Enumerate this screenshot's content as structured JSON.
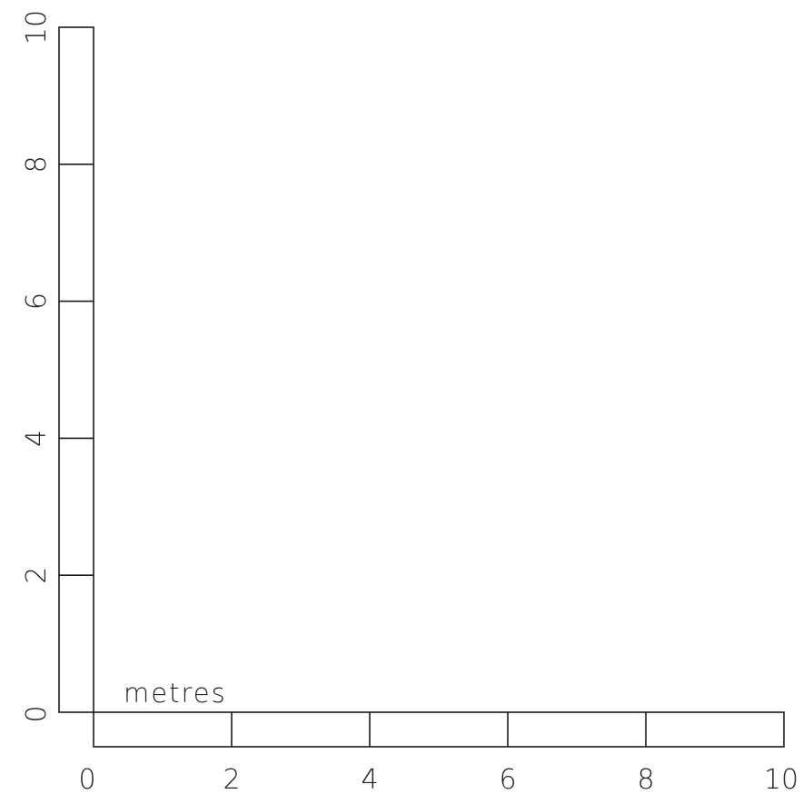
{
  "scale": {
    "unit_label": "metres",
    "axis_min": 0,
    "axis_max": 10,
    "tick_step": 2,
    "x_tick_labels": [
      "0",
      "2",
      "4",
      "6",
      "8",
      "10"
    ],
    "y_tick_labels": [
      "0",
      "2",
      "4",
      "6",
      "8",
      "10"
    ],
    "line_color": "#1a1a1a",
    "text_color": "#222222"
  }
}
